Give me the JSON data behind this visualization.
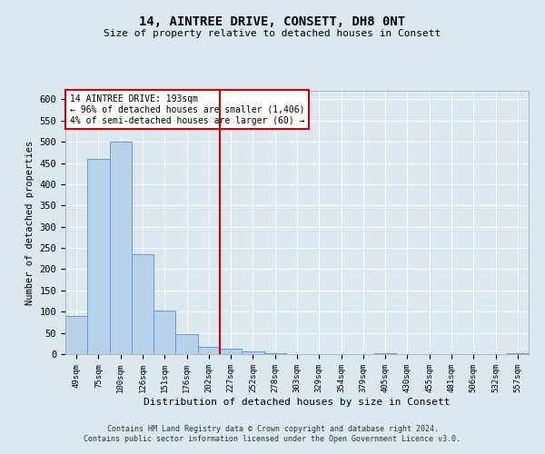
{
  "title_line1": "14, AINTREE DRIVE, CONSETT, DH8 0NT",
  "title_line2": "Size of property relative to detached houses in Consett",
  "xlabel": "Distribution of detached houses by size in Consett",
  "ylabel": "Number of detached properties",
  "annotation_line1": "14 AINTREE DRIVE: 193sqm",
  "annotation_line2": "← 96% of detached houses are smaller (1,406)",
  "annotation_line3": "4% of semi-detached houses are larger (60) →",
  "footer_line1": "Contains HM Land Registry data © Crown copyright and database right 2024.",
  "footer_line2": "Contains public sector information licensed under the Open Government Licence v3.0.",
  "categories": [
    "49sqm",
    "75sqm",
    "100sqm",
    "126sqm",
    "151sqm",
    "176sqm",
    "202sqm",
    "227sqm",
    "252sqm",
    "278sqm",
    "303sqm",
    "329sqm",
    "354sqm",
    "379sqm",
    "405sqm",
    "430sqm",
    "455sqm",
    "481sqm",
    "506sqm",
    "532sqm",
    "557sqm"
  ],
  "values": [
    90,
    460,
    500,
    235,
    103,
    47,
    18,
    12,
    7,
    3,
    0,
    0,
    0,
    0,
    3,
    0,
    0,
    0,
    0,
    0,
    3
  ],
  "bar_color": "#b8d0e8",
  "bar_edge_color": "#6699cc",
  "vline_x": 6.5,
  "vline_color": "#cc0000",
  "annotation_box_color": "#cc0000",
  "background_color": "#dce8f0",
  "plot_bg_color": "#dce8f0",
  "grid_color": "#ffffff",
  "ylim": [
    0,
    620
  ],
  "yticks": [
    0,
    50,
    100,
    150,
    200,
    250,
    300,
    350,
    400,
    450,
    500,
    550,
    600
  ]
}
